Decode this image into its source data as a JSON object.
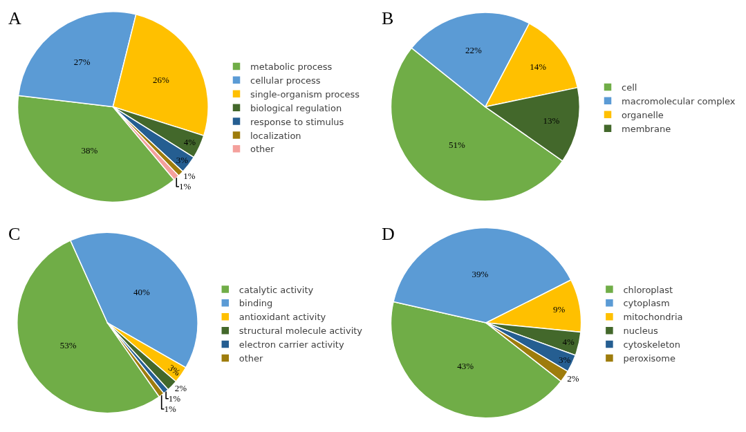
{
  "chart_data": [
    {
      "type": "pie",
      "title": "A",
      "legend": "right",
      "categories": [
        "metabolic process",
        "cellular process",
        "single-organism process",
        "biological regulation",
        "response to stimulus",
        "localization",
        "other"
      ],
      "values": [
        38,
        27,
        26,
        4,
        3,
        1,
        1
      ],
      "value_labels": [
        "38%",
        "27%",
        "26%",
        "4%",
        "3%",
        "1%",
        "1%"
      ],
      "colors": [
        "#70ad47",
        "#5b9bd5",
        "#ffc000",
        "#43682b",
        "#255e91",
        "#9e7c0c",
        "#f4a09c"
      ]
    },
    {
      "type": "pie",
      "title": "B",
      "legend": "right",
      "categories": [
        "cell",
        "macromolecular complex",
        "organelle",
        "membrane"
      ],
      "values": [
        51,
        22,
        14,
        13
      ],
      "value_labels": [
        "51%",
        "22%",
        "14%",
        "13%"
      ],
      "colors": [
        "#70ad47",
        "#5b9bd5",
        "#ffc000",
        "#43682b"
      ]
    },
    {
      "type": "pie",
      "title": "C",
      "legend": "right",
      "categories": [
        "catalytic activity",
        "binding",
        "antioxidant activity",
        "structural molecule activity",
        "electron carrier activity",
        "other"
      ],
      "values": [
        53,
        40,
        3,
        2,
        1,
        1
      ],
      "value_labels": [
        "53%",
        "40%",
        "3%",
        "2%",
        "1%",
        "1%"
      ],
      "colors": [
        "#70ad47",
        "#5b9bd5",
        "#ffc000",
        "#43682b",
        "#255e91",
        "#9e7c0c"
      ]
    },
    {
      "type": "pie",
      "title": "D",
      "legend": "right",
      "categories": [
        "chloroplast",
        "cytoplasm",
        "mitochondria",
        "nucleus",
        "cytoskeleton",
        "peroxisome"
      ],
      "values": [
        43,
        39,
        9,
        4,
        3,
        2
      ],
      "value_labels": [
        "43%",
        "39%",
        "9%",
        "4%",
        "3%",
        "2%"
      ],
      "colors": [
        "#70ad47",
        "#5b9bd5",
        "#ffc000",
        "#43682b",
        "#255e91",
        "#9e7c0c"
      ]
    }
  ]
}
